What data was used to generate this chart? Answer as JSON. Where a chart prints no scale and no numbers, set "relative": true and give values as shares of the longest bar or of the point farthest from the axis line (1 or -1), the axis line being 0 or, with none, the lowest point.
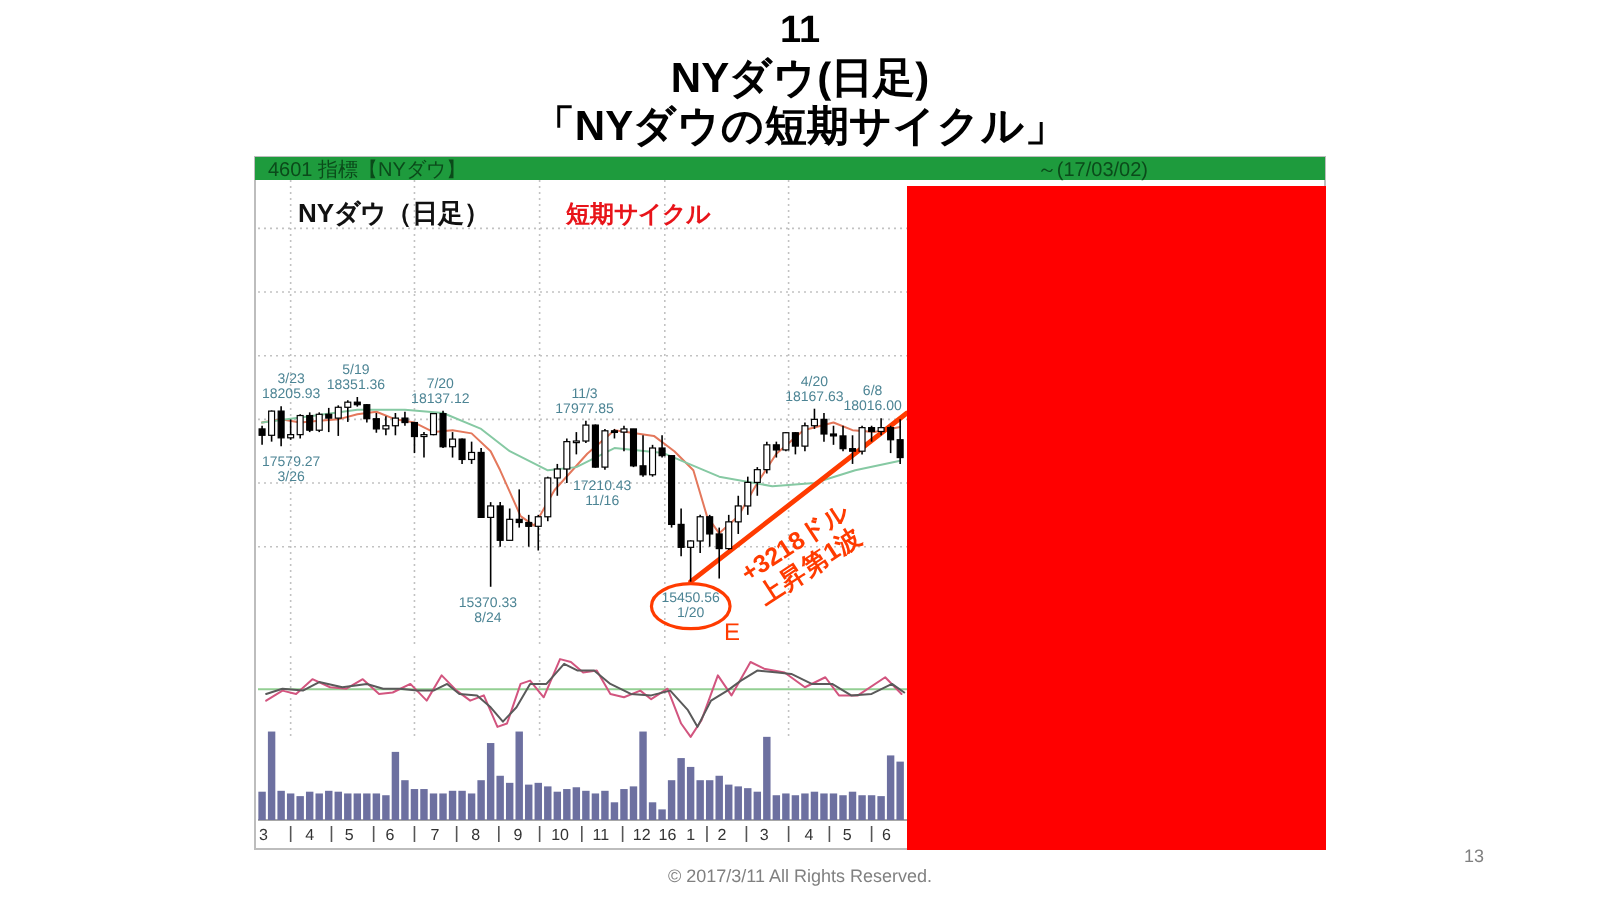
{
  "chart_data": [
    {
      "type": "candlestick",
      "title": "NYダウ(日足)",
      "subtitle": "「NYダウの短期サイクル」",
      "annotations": [
        "11",
        "NYダウ（日足）",
        "短期サイクル",
        "4601 指標【NYダウ】",
        "～(17/03/02)",
        "© 2017/3/11 All Rights Reserved.",
        "13",
        {
          "text": "3/23 18205.93",
          "x": "2015-03-23",
          "y": 18205.93
        },
        {
          "text": "5/19 18351.36",
          "x": "2015-05-19",
          "y": 18351.36
        },
        {
          "text": "7/20 18137.12",
          "x": "2015-07-20",
          "y": 18137.12
        },
        {
          "text": "11/3 17977.85",
          "x": "2015-11-03",
          "y": 17977.85
        },
        {
          "text": "4/20 18167.63",
          "x": "2016-04-20",
          "y": 18167.63
        },
        {
          "text": "6/8 18016.00",
          "x": "2016-06-08",
          "y": 18016.0
        },
        {
          "text": "17579.27 3/26",
          "x": "2015-03-26",
          "y": 17579.27
        },
        {
          "text": "17210.43 11/16",
          "x": "2015-11-16",
          "y": 17210.43
        },
        {
          "text": "15370.33 8/24",
          "x": "2015-08-24",
          "y": 15370.33
        },
        {
          "text": "15450.56 1/20",
          "x": "2016-01-20",
          "y": 15450.56
        },
        {
          "text": "+3218ドル 上昇第1波",
          "x": "2016-04-08",
          "y": 16770
        },
        "E"
      ],
      "x": [
        "2015-03-11",
        "2015-03-18",
        "2015-03-25",
        "2015-04-01",
        "2015-04-08",
        "2015-04-15",
        "2015-04-22",
        "2015-04-29",
        "2015-05-06",
        "2015-05-13",
        "2015-05-20",
        "2015-05-27",
        "2015-06-03",
        "2015-06-10",
        "2015-06-17",
        "2015-06-24",
        "2015-07-01",
        "2015-07-08",
        "2015-07-15",
        "2015-07-22",
        "2015-07-29",
        "2015-08-05",
        "2015-08-12",
        "2015-08-19",
        "2015-08-26",
        "2015-09-02",
        "2015-09-09",
        "2015-09-16",
        "2015-09-23",
        "2015-09-30",
        "2015-10-07",
        "2015-10-14",
        "2015-10-21",
        "2015-10-28",
        "2015-11-04",
        "2015-11-11",
        "2015-11-18",
        "2015-11-25",
        "2015-12-02",
        "2015-12-09",
        "2015-12-16",
        "2015-12-23",
        "2015-12-30",
        "2016-01-06",
        "2016-01-13",
        "2016-01-20",
        "2016-01-27",
        "2016-02-03",
        "2016-02-10",
        "2016-02-17",
        "2016-02-24",
        "2016-03-02",
        "2016-03-09",
        "2016-03-16",
        "2016-03-23",
        "2016-03-30",
        "2016-04-06",
        "2016-04-13",
        "2016-04-20",
        "2016-04-27",
        "2016-05-04",
        "2016-05-11",
        "2016-05-18",
        "2016-05-25",
        "2016-06-01",
        "2016-06-08",
        "2016-06-15",
        "2016-06-22"
      ],
      "ohlc": [
        [
          17850,
          17900,
          17600,
          17750
        ],
        [
          17750,
          18140,
          17650,
          18130
        ],
        [
          18130,
          18205.93,
          17579.27,
          17710
        ],
        [
          17710,
          18000,
          17680,
          17760
        ],
        [
          17760,
          18080,
          17700,
          18060
        ],
        [
          18060,
          18110,
          17800,
          17830
        ],
        [
          17830,
          18110,
          17800,
          18080
        ],
        [
          18080,
          18180,
          17800,
          18020
        ],
        [
          18020,
          18220,
          17740,
          18190
        ],
        [
          18190,
          18300,
          17960,
          18270
        ],
        [
          18270,
          18351.36,
          18200,
          18230
        ],
        [
          18230,
          18240,
          17950,
          18010
        ],
        [
          18010,
          18100,
          17790,
          17850
        ],
        [
          17850,
          18050,
          17750,
          17900
        ],
        [
          17900,
          18100,
          17750,
          18020
        ],
        [
          18020,
          18120,
          17900,
          17950
        ],
        [
          17950,
          17950,
          17470,
          17730
        ],
        [
          17730,
          17800,
          17400,
          17760
        ],
        [
          17760,
          18100,
          17750,
          18090
        ],
        [
          18090,
          18137.12,
          17550,
          17570
        ],
        [
          17570,
          17800,
          17400,
          17690
        ],
        [
          17690,
          17700,
          17300,
          17370
        ],
        [
          17370,
          17650,
          17300,
          17480
        ],
        [
          17480,
          17550,
          16450,
          16460
        ],
        [
          16460,
          16700,
          15370.33,
          16640
        ],
        [
          16640,
          16700,
          16000,
          16100
        ],
        [
          16100,
          16600,
          16100,
          16430
        ],
        [
          16430,
          16900,
          16300,
          16380
        ],
        [
          16380,
          16500,
          16000,
          16320
        ],
        [
          16320,
          16500,
          15940,
          16470
        ],
        [
          16470,
          17100,
          16400,
          17080
        ],
        [
          17080,
          17300,
          16800,
          17220
        ],
        [
          17220,
          17700,
          17000,
          17650
        ],
        [
          17650,
          17800,
          17450,
          17660
        ],
        [
          17660,
          17977.85,
          17630,
          17910
        ],
        [
          17910,
          17920,
          17240,
          17250
        ],
        [
          17250,
          17850,
          17210.43,
          17820
        ],
        [
          17820,
          17850,
          17700,
          17800
        ],
        [
          17800,
          17900,
          17500,
          17850
        ],
        [
          17850,
          17850,
          17250,
          17270
        ],
        [
          17270,
          17750,
          17100,
          17130
        ],
        [
          17130,
          17600,
          17100,
          17550
        ],
        [
          17550,
          17750,
          17400,
          17430
        ],
        [
          17430,
          17430,
          16300,
          16350
        ],
        [
          16350,
          16600,
          15850,
          15990
        ],
        [
          15990,
          16100,
          15450.56,
          16090
        ],
        [
          16090,
          16500,
          15900,
          16470
        ],
        [
          16470,
          16500,
          16000,
          16200
        ],
        [
          16200,
          16300,
          15500,
          15970
        ],
        [
          15970,
          16500,
          15950,
          16390
        ],
        [
          16390,
          16800,
          16200,
          16640
        ],
        [
          16640,
          17100,
          16500,
          17010
        ],
        [
          17010,
          17250,
          16800,
          17210
        ],
        [
          17210,
          17650,
          17150,
          17600
        ],
        [
          17600,
          17650,
          17400,
          17520
        ],
        [
          17520,
          17800,
          17500,
          17790
        ],
        [
          17790,
          17800,
          17450,
          17580
        ],
        [
          17580,
          17950,
          17500,
          17900
        ],
        [
          17900,
          18167.63,
          17850,
          18000
        ],
        [
          18000,
          18100,
          17650,
          17770
        ],
        [
          17770,
          17900,
          17600,
          17740
        ],
        [
          17740,
          17900,
          17500,
          17540
        ],
        [
          17540,
          17750,
          17300,
          17500
        ],
        [
          17500,
          17900,
          17450,
          17870
        ],
        [
          17870,
          17900,
          17650,
          17810
        ],
        [
          17810,
          18016.0,
          17750,
          17870
        ],
        [
          17870,
          17900,
          17470,
          17680
        ],
        [
          17680,
          18000,
          17300,
          17400
        ]
      ],
      "color": "#000000",
      "series": [
        {
          "type": "line",
          "color": "#e4785c",
          "x": [
            "2015-03-11",
            "2015-03-25",
            "2015-04-08",
            "2015-04-22",
            "2015-05-06",
            "2015-05-20",
            "2015-06-03",
            "2015-06-17",
            "2015-07-01",
            "2015-07-15",
            "2015-07-29",
            "2015-08-12",
            "2015-08-26",
            "2015-09-02",
            "2015-09-17",
            "2015-09-27",
            "2015-10-12",
            "2015-11-05",
            "2015-11-25",
            "2015-12-24",
            "2016-01-08",
            "2016-01-22",
            "2016-02-01",
            "2016-02-10",
            "2016-02-24",
            "2016-03-09",
            "2016-03-23",
            "2016-04-12",
            "2016-05-04",
            "2016-05-18",
            "2016-06-03",
            "2016-06-22"
          ],
          "values": [
            17950,
            18000,
            17950,
            17980,
            18000,
            18080,
            18120,
            18000,
            17950,
            17800,
            17830,
            17780,
            17500,
            17200,
            16480,
            16330,
            16890,
            17460,
            17830,
            17740,
            17500,
            17200,
            16480,
            16210,
            16480,
            17000,
            17460,
            17830,
            17950,
            17830,
            17800,
            17880
          ]
        },
        {
          "type": "line",
          "color": "#86c9a3",
          "x": [
            "2015-03-11",
            "2015-04-15",
            "2015-05-20",
            "2015-06-24",
            "2015-07-22",
            "2015-08-19",
            "2015-09-09",
            "2015-10-07",
            "2015-10-28",
            "2015-11-25",
            "2015-12-31",
            "2016-02-10",
            "2016-03-20",
            "2016-04-20",
            "2016-05-20",
            "2016-06-22"
          ],
          "values": [
            17950,
            18050,
            18150,
            18150,
            18100,
            17850,
            17500,
            17200,
            17250,
            17550,
            17470,
            17100,
            16950,
            17000,
            17200,
            17350
          ]
        },
        {
          "type": "line",
          "color": "#ff3b00",
          "x": [
            "2016-01-20",
            "2016-06-27"
          ],
          "values": [
            15450,
            18100
          ]
        }
      ],
      "xlim": [
        "2015-03-08",
        "2017-05-01"
      ],
      "ylim": [
        14440,
        21760
      ],
      "xticks": [
        {
          "value": "2015-04-01",
          "label": null
        },
        {
          "value": "2015-07-01",
          "label": null
        },
        {
          "value": "2015-10-01",
          "label": null
        },
        {
          "value": "2016-01-01",
          "label": null
        },
        {
          "value": "2016-04-01",
          "label": null
        }
      ],
      "yticks": [
        {
          "value": 16000,
          "label": null
        },
        {
          "value": 17000,
          "label": null
        },
        {
          "value": 18000,
          "label": null
        },
        {
          "value": 19000,
          "label": null
        },
        {
          "value": 20000,
          "label": null
        },
        {
          "value": 21000,
          "label": null
        }
      ],
      "grid": true,
      "tick_labels": false
    },
    {
      "type": "line",
      "relative": true,
      "series": [
        {
          "color": "#d2557f",
          "x": [
            "2015-03-14",
            "2015-03-26",
            "2015-04-05",
            "2015-04-17",
            "2015-04-30",
            "2015-05-12",
            "2015-05-24",
            "2015-06-05",
            "2015-06-15",
            "2015-06-28",
            "2015-07-10",
            "2015-07-21",
            "2015-08-01",
            "2015-08-11",
            "2015-08-21",
            "2015-08-31",
            "2015-09-07",
            "2015-09-17",
            "2015-09-24",
            "2015-10-04",
            "2015-10-16",
            "2015-10-24",
            "2015-11-02",
            "2015-11-12",
            "2015-11-22",
            "2015-12-02",
            "2015-12-14",
            "2015-12-22",
            "2016-01-03",
            "2016-01-13",
            "2016-01-20",
            "2016-01-28",
            "2016-02-09",
            "2016-02-19",
            "2016-03-04",
            "2016-03-14",
            "2016-03-29",
            "2016-04-13",
            "2016-04-28",
            "2016-05-08",
            "2016-05-22",
            "2016-06-11",
            "2016-06-23"
          ],
          "values": [
            -0.24,
            -0.03,
            -0.1,
            0.21,
            0.04,
            0.01,
            0.21,
            -0.1,
            -0.07,
            0.11,
            -0.24,
            0.29,
            -0.03,
            -0.24,
            -0.13,
            -0.79,
            -0.72,
            0.11,
            0.18,
            -0.17,
            0.63,
            0.57,
            0.35,
            0.39,
            -0.1,
            -0.17,
            -0.03,
            -0.21,
            0.01,
            -0.72,
            -1.0,
            -0.65,
            0.29,
            -0.13,
            0.57,
            0.43,
            0.35,
            0.04,
            0.25,
            -0.13,
            -0.13,
            0.25,
            -0.1
          ]
        },
        {
          "color": "#5a5a5a",
          "x": [
            "2015-03-14",
            "2015-03-26",
            "2015-04-10",
            "2015-04-22",
            "2015-05-09",
            "2015-05-27",
            "2015-06-08",
            "2015-06-20",
            "2015-07-03",
            "2015-07-15",
            "2015-07-25",
            "2015-08-03",
            "2015-08-16",
            "2015-08-26",
            "2015-09-04",
            "2015-09-14",
            "2015-09-24",
            "2015-10-06",
            "2015-10-19",
            "2015-10-29",
            "2015-11-10",
            "2015-11-22",
            "2015-12-07",
            "2015-12-22",
            "2016-01-05",
            "2016-01-18",
            "2016-01-25",
            "2016-02-04",
            "2016-02-16",
            "2016-02-26",
            "2016-03-09",
            "2016-03-24",
            "2016-04-03",
            "2016-04-18",
            "2016-05-03",
            "2016-05-17",
            "2016-06-01",
            "2016-06-16",
            "2016-06-25"
          ],
          "values": [
            -0.1,
            0.01,
            -0.03,
            0.15,
            0.04,
            0.11,
            0.01,
            0.01,
            -0.03,
            -0.03,
            0.11,
            -0.1,
            -0.13,
            -0.38,
            -0.68,
            -0.38,
            0.11,
            0.11,
            0.53,
            0.39,
            0.39,
            0.11,
            -0.1,
            -0.13,
            -0.03,
            -0.44,
            -0.79,
            -0.24,
            -0.03,
            0.18,
            0.39,
            0.35,
            0.32,
            0.11,
            0.11,
            -0.13,
            -0.1,
            0.11,
            -0.07
          ]
        }
      ],
      "ref_lines": [
        {
          "axis": "y",
          "value": 0,
          "color": "#93cf93"
        }
      ],
      "xlim": [
        "2015-03-08",
        "2017-05-01"
      ],
      "xticks": [
        {
          "value": "2015-04-01",
          "label": null
        },
        {
          "value": "2015-07-01",
          "label": null
        },
        {
          "value": "2015-10-01",
          "label": null
        },
        {
          "value": "2016-01-01",
          "label": null
        },
        {
          "value": "2016-04-01",
          "label": null
        }
      ],
      "grid": "x",
      "tick_labels": false
    },
    {
      "type": "bar",
      "relative": true,
      "x": [
        "2015-03-11",
        "2015-03-18",
        "2015-03-25",
        "2015-04-01",
        "2015-04-08",
        "2015-04-15",
        "2015-04-22",
        "2015-04-29",
        "2015-05-06",
        "2015-05-13",
        "2015-05-20",
        "2015-05-27",
        "2015-06-03",
        "2015-06-10",
        "2015-06-17",
        "2015-06-24",
        "2015-07-01",
        "2015-07-08",
        "2015-07-15",
        "2015-07-22",
        "2015-07-29",
        "2015-08-05",
        "2015-08-12",
        "2015-08-19",
        "2015-08-26",
        "2015-09-02",
        "2015-09-09",
        "2015-09-16",
        "2015-09-23",
        "2015-09-30",
        "2015-10-07",
        "2015-10-14",
        "2015-10-21",
        "2015-10-28",
        "2015-11-04",
        "2015-11-11",
        "2015-11-18",
        "2015-11-25",
        "2015-12-02",
        "2015-12-09",
        "2015-12-16",
        "2015-12-23",
        "2015-12-30",
        "2016-01-06",
        "2016-01-13",
        "2016-01-20",
        "2016-01-27",
        "2016-02-03",
        "2016-02-10",
        "2016-02-17",
        "2016-02-24",
        "2016-03-02",
        "2016-03-09",
        "2016-03-16",
        "2016-03-23",
        "2016-03-30",
        "2016-04-06",
        "2016-04-13",
        "2016-04-20",
        "2016-04-27",
        "2016-05-04",
        "2016-05-11",
        "2016-05-18",
        "2016-05-25",
        "2016-06-01",
        "2016-06-08",
        "2016-06-15",
        "2016-06-22"
      ],
      "values": [
        0.32,
        1.0,
        0.33,
        0.3,
        0.27,
        0.32,
        0.3,
        0.33,
        0.32,
        0.3,
        0.3,
        0.3,
        0.3,
        0.28,
        0.77,
        0.45,
        0.35,
        0.35,
        0.3,
        0.3,
        0.33,
        0.33,
        0.3,
        0.45,
        0.87,
        0.5,
        0.42,
        1.0,
        0.4,
        0.42,
        0.38,
        0.32,
        0.35,
        0.37,
        0.33,
        0.3,
        0.33,
        0.2,
        0.35,
        0.38,
        1.0,
        0.2,
        0.12,
        0.45,
        0.7,
        0.6,
        0.45,
        0.45,
        0.5,
        0.4,
        0.38,
        0.36,
        0.32,
        0.94,
        0.28,
        0.3,
        0.28,
        0.3,
        0.32,
        0.3,
        0.3,
        0.28,
        0.32,
        0.28,
        0.28,
        0.27,
        0.73,
        0.66
      ],
      "color": "#6d70a0",
      "xlim": [
        "2015-03-08",
        "2017-05-01"
      ],
      "xticks": [
        {
          "value": "2015-03-12",
          "label": "3"
        },
        {
          "value": "2015-04-01",
          "label": null
        },
        {
          "value": "2015-04-15",
          "label": "4"
        },
        {
          "value": "2015-05-01",
          "label": null
        },
        {
          "value": "2015-05-14",
          "label": "5"
        },
        {
          "value": "2015-06-01",
          "label": null
        },
        {
          "value": "2015-06-13",
          "label": "6"
        },
        {
          "value": "2015-07-01",
          "label": null
        },
        {
          "value": "2015-07-16",
          "label": "7"
        },
        {
          "value": "2015-08-01",
          "label": null
        },
        {
          "value": "2015-08-15",
          "label": "8"
        },
        {
          "value": "2015-09-01",
          "label": null
        },
        {
          "value": "2015-09-15",
          "label": "9"
        },
        {
          "value": "2015-10-01",
          "label": null
        },
        {
          "value": "2015-10-16",
          "label": "10"
        },
        {
          "value": "2015-11-01",
          "label": null
        },
        {
          "value": "2015-11-15",
          "label": "11"
        },
        {
          "value": "2015-12-01",
          "label": null
        },
        {
          "value": "2015-12-15",
          "label": "12"
        },
        {
          "value": "2016-01-03",
          "label": "16"
        },
        {
          "value": "2016-01-20",
          "label": "1"
        },
        {
          "value": "2016-02-01",
          "label": null
        },
        {
          "value": "2016-02-12",
          "label": "2"
        },
        {
          "value": "2016-03-01",
          "label": null
        },
        {
          "value": "2016-03-14",
          "label": "3"
        },
        {
          "value": "2016-04-01",
          "label": null
        },
        {
          "value": "2016-04-16",
          "label": "4"
        },
        {
          "value": "2016-05-01",
          "label": null
        },
        {
          "value": "2016-05-14",
          "label": "5"
        },
        {
          "value": "2016-06-01",
          "label": null
        },
        {
          "value": "2016-06-12",
          "label": "6"
        }
      ],
      "tick_labels": "x"
    }
  ]
}
